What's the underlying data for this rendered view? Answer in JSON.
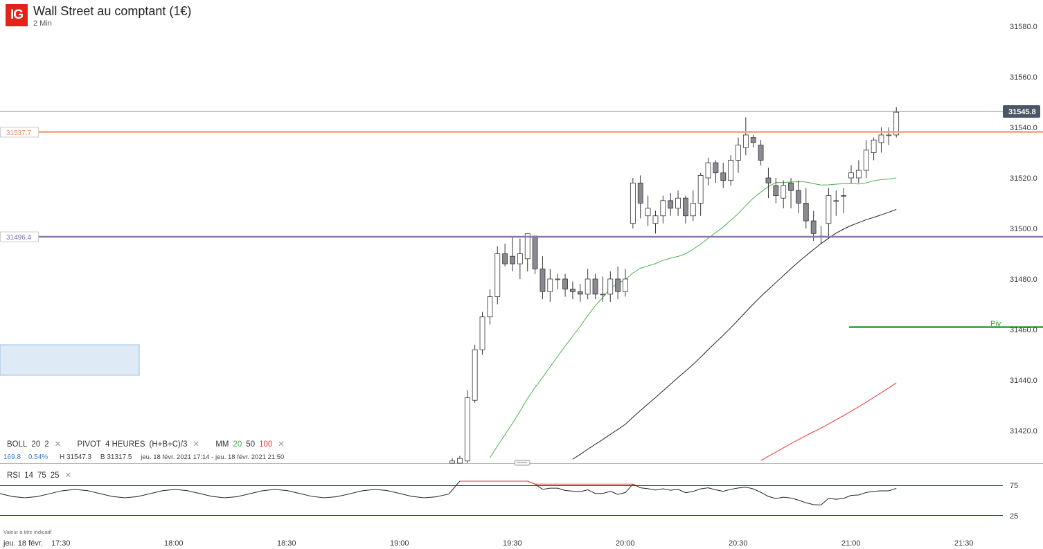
{
  "header": {
    "logo": "IG",
    "title": "Wall Street au comptant (1€)",
    "timeframe": "2 Min"
  },
  "indicators": {
    "boll": {
      "name": "BOLL",
      "period": "20",
      "dev": "2"
    },
    "pivot": {
      "name": "PIVOT",
      "period": "4 HEURES",
      "formula": "(H+B+C)/3"
    },
    "mm": {
      "name": "MM",
      "p1": "20",
      "p2": "50",
      "p3": "100",
      "colors": {
        "p1": "#4caf50",
        "p2": "#222222",
        "p3": "#e53935"
      }
    },
    "rsi": {
      "name": "RSI",
      "period": "14",
      "upper": "75",
      "lower": "25"
    }
  },
  "stats": {
    "change": "169.8",
    "change_pct": "0.54%",
    "high": "H 31547.3",
    "low": "B 31317.5",
    "range": "jeu. 18 févr. 2021 17:14 - jeu. 18 févr. 2021 21:50"
  },
  "price_levels": {
    "current": "31545.8",
    "resistance": "31537.7",
    "support": "31496.4",
    "pivot_label": "Piv"
  },
  "colors": {
    "resistance": "#f0a080",
    "support": "#8878b0",
    "pivot": "#2e9e2e",
    "current_tag": "#4a5568",
    "up": "#ffffff",
    "down": "#8a8a93"
  },
  "footer": {
    "disclaimer": "Valeur à titre indicatif"
  },
  "chart_data": {
    "type": "candlestick",
    "y_ticks": [
      "31580.0",
      "31560.0",
      "31540.0",
      "31520.0",
      "31500.0",
      "31480.0",
      "31460.0",
      "31440.0",
      "31420.0"
    ],
    "x_ticks": [
      "jeu. 18 févr.",
      "17:30",
      "18:00",
      "18:30",
      "19:00",
      "19:30",
      "20:00",
      "20:30",
      "21:00",
      "21:30"
    ],
    "rsi_ticks": [
      "75",
      "25"
    ],
    "ylim": [
      31404,
      31586
    ],
    "x": [
      "19:14",
      "19:16",
      "19:18",
      "19:20",
      "19:22",
      "19:24",
      "19:26",
      "19:28",
      "19:30",
      "19:32",
      "19:34",
      "19:36",
      "19:38",
      "19:40",
      "19:42",
      "19:44",
      "19:46",
      "19:48",
      "19:50",
      "19:52",
      "19:54",
      "19:56",
      "19:58",
      "20:00",
      "20:02",
      "20:04",
      "20:06",
      "20:08",
      "20:10",
      "20:12",
      "20:14",
      "20:16",
      "20:18",
      "20:20",
      "20:22",
      "20:24",
      "20:26",
      "20:28",
      "20:30",
      "20:32",
      "20:34",
      "20:36",
      "20:38",
      "20:40",
      "20:42",
      "20:44",
      "20:46",
      "20:48",
      "20:50",
      "20:52",
      "20:54",
      "20:56",
      "20:58",
      "21:00",
      "21:02",
      "21:04",
      "21:06",
      "21:08",
      "21:10",
      "21:12"
    ],
    "open": [
      31407,
      31407,
      31408,
      31432,
      31452,
      31465,
      31473,
      31490,
      31489,
      31486,
      31488,
      31497,
      31484,
      31475,
      31480,
      31480,
      31476,
      31475,
      31474,
      31480,
      31474,
      31474,
      31480,
      31475,
      31502,
      31518,
      31505,
      31502,
      31505,
      31511,
      31508,
      31512,
      31505,
      31510,
      31520,
      31526,
      31522,
      31519,
      31527,
      31532,
      31536,
      31533,
      31520,
      31517,
      31512,
      31518,
      31515,
      31510,
      31503,
      31497,
      31502,
      31511,
      31513,
      31520,
      31520,
      31523,
      31530,
      31534,
      31537,
      31537
    ],
    "close": [
      31408,
      31409,
      31433,
      31452,
      31465,
      31473,
      31490,
      31486,
      31486,
      31490,
      31498,
      31484,
      31475,
      31480,
      31480,
      31476,
      31475,
      31474,
      31480,
      31474,
      31474,
      31480,
      31475,
      31480,
      31518,
      31510,
      31508,
      31505,
      31511,
      31508,
      31512,
      31505,
      31510,
      31521,
      31526,
      31522,
      31519,
      31527,
      31533,
      31537,
      31534,
      31527,
      31518,
      31513,
      31517,
      31515,
      31510,
      31503,
      31498,
      31497,
      31513,
      31511,
      31513,
      31522,
      31523,
      31531,
      31535,
      31537,
      31537,
      31546
    ],
    "high": [
      31409,
      31410,
      31436,
      31454,
      31467,
      31476,
      31493,
      31494,
      31497,
      31496,
      31498,
      31497,
      31489,
      31484,
      31482,
      31482,
      31479,
      31478,
      31484,
      31482,
      31481,
      31483,
      31485,
      31484,
      31520,
      31521,
      31513,
      31507,
      31513,
      31514,
      31515,
      31513,
      31515,
      31522,
      31528,
      31527,
      31526,
      31529,
      31536,
      31544,
      31537,
      31535,
      31524,
      31520,
      31519,
      31520,
      31519,
      31516,
      31507,
      31501,
      31516,
      31515,
      31516,
      31525,
      31527,
      31535,
      31536,
      31540,
      31540,
      31548
    ],
    "low": [
      31405,
      31405,
      31407,
      31431,
      31450,
      31462,
      31470,
      31485,
      31483,
      31480,
      31483,
      31482,
      31472,
      31471,
      31476,
      31473,
      31472,
      31471,
      31472,
      31472,
      31471,
      31471,
      31472,
      31473,
      31500,
      31504,
      31501,
      31498,
      31502,
      31505,
      31505,
      31502,
      31503,
      31505,
      31517,
      31518,
      31516,
      31517,
      31522,
      31529,
      31532,
      31525,
      31512,
      31510,
      31508,
      31508,
      31506,
      31500,
      31495,
      31494,
      31496,
      31505,
      31506,
      31518,
      31518,
      31520,
      31527,
      31530,
      31533,
      31536
    ]
  }
}
